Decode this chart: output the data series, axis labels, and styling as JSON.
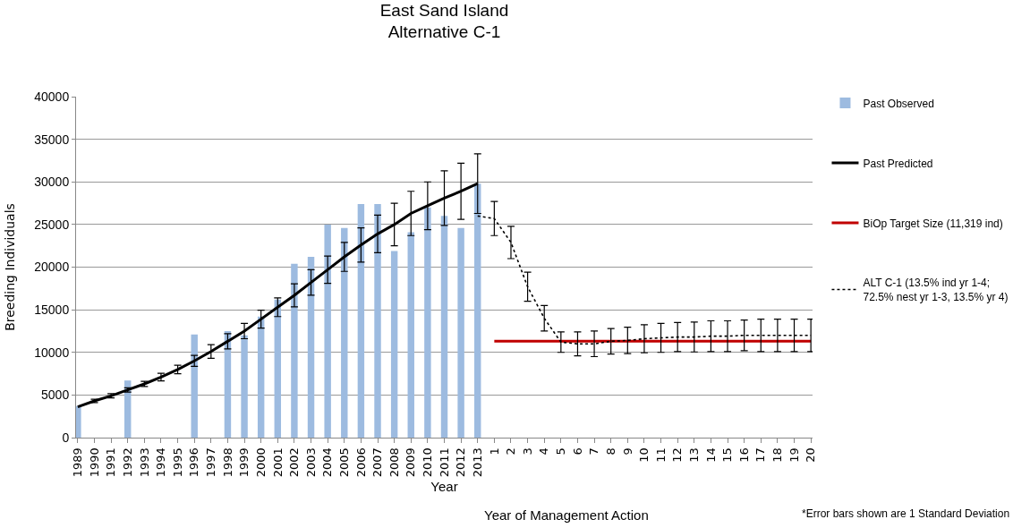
{
  "chart_data": {
    "type": "bar",
    "title": "East Sand Island",
    "subtitle": "Alternative C-1",
    "xlabel": "Year",
    "ylabel": "Breeding Individuals",
    "annotations": [
      "Year of Management Action",
      "*Error bars shown are 1 Standard Deviation"
    ],
    "categories": [
      "1989",
      "1990",
      "1991",
      "1992",
      "1993",
      "1994",
      "1995",
      "1996",
      "1997",
      "1998",
      "1999",
      "2000",
      "2001",
      "2002",
      "2003",
      "2004",
      "2005",
      "2006",
      "2007",
      "2008",
      "2009",
      "2010",
      "2011",
      "2012",
      "2013",
      "1",
      "2",
      "3",
      "4",
      "5",
      "6",
      "7",
      "8",
      "9",
      "10",
      "11",
      "12",
      "13",
      "14",
      "15",
      "16",
      "17",
      "18",
      "19",
      "20"
    ],
    "series": [
      {
        "name": "Past Observed",
        "color": "#9dbbe0",
        "values": [
          3700,
          null,
          null,
          6700,
          null,
          null,
          null,
          12100,
          null,
          12500,
          12000,
          14200,
          16200,
          20400,
          21200,
          25000,
          24600,
          27400,
          27400,
          21900,
          24100,
          27000,
          26000,
          24600,
          29800,
          null,
          null,
          null,
          null,
          null,
          null,
          null,
          null,
          null,
          null,
          null,
          null,
          null,
          null,
          null,
          null,
          null,
          null,
          null,
          null
        ]
      },
      {
        "name": "Past Predicted",
        "type": "line",
        "color": "#000000",
        "line_style": "solid",
        "values": [
          3600,
          4300,
          4900,
          5600,
          6300,
          7100,
          8000,
          9000,
          10100,
          11300,
          12500,
          13900,
          15300,
          16700,
          18200,
          19700,
          21200,
          22600,
          23900,
          25000,
          26300,
          27200,
          28100,
          28900,
          29800,
          null,
          null,
          null,
          null,
          null,
          null,
          null,
          null,
          null,
          null,
          null,
          null,
          null,
          null,
          null,
          null,
          null,
          null,
          null,
          null
        ],
        "errors": [
          null,
          200,
          250,
          250,
          300,
          450,
          500,
          650,
          800,
          900,
          900,
          1050,
          1100,
          1350,
          1500,
          1600,
          1700,
          2000,
          2200,
          2500,
          2600,
          2800,
          3200,
          3300,
          3500,
          null,
          null,
          null,
          null,
          null,
          null,
          null,
          null,
          null,
          null,
          null,
          null,
          null,
          null,
          null,
          null,
          null,
          null,
          null,
          null
        ]
      },
      {
        "name": "BiOp Target Size (11,319 ind)",
        "type": "line",
        "color": "#c00000",
        "line_style": "solid",
        "values": [
          null,
          null,
          null,
          null,
          null,
          null,
          null,
          null,
          null,
          null,
          null,
          null,
          null,
          null,
          null,
          null,
          null,
          null,
          null,
          null,
          null,
          null,
          null,
          null,
          null,
          11319,
          11319,
          11319,
          11319,
          11319,
          11319,
          11319,
          11319,
          11319,
          11319,
          11319,
          11319,
          11319,
          11319,
          11319,
          11319,
          11319,
          11319,
          11319,
          11319
        ]
      },
      {
        "name": "ALT C-1 (13.5% ind yr 1-4; 72.5% nest yr 1-3, 13.5% yr 4)",
        "type": "line",
        "color": "#000000",
        "line_style": "dotted",
        "values": [
          null,
          null,
          null,
          null,
          null,
          null,
          null,
          null,
          null,
          null,
          null,
          null,
          null,
          null,
          null,
          null,
          null,
          null,
          null,
          null,
          null,
          null,
          null,
          null,
          26000,
          25700,
          22900,
          17700,
          14000,
          11200,
          11000,
          11000,
          11300,
          11400,
          11600,
          11700,
          11800,
          11800,
          11900,
          11900,
          12000,
          12000,
          12000,
          12000,
          12000
        ],
        "errors": [
          null,
          null,
          null,
          null,
          null,
          null,
          null,
          null,
          null,
          null,
          null,
          null,
          null,
          null,
          null,
          null,
          null,
          null,
          null,
          null,
          null,
          null,
          null,
          null,
          null,
          2000,
          1900,
          1700,
          1500,
          1200,
          1400,
          1500,
          1500,
          1550,
          1650,
          1700,
          1700,
          1750,
          1800,
          1800,
          1800,
          1900,
          1900,
          1900,
          1900
        ]
      }
    ],
    "ylim": [
      0,
      40000
    ],
    "yticks": [
      0,
      5000,
      10000,
      15000,
      20000,
      25000,
      30000,
      35000,
      40000
    ],
    "grid": "y",
    "legend": "right",
    "marker": "none"
  }
}
